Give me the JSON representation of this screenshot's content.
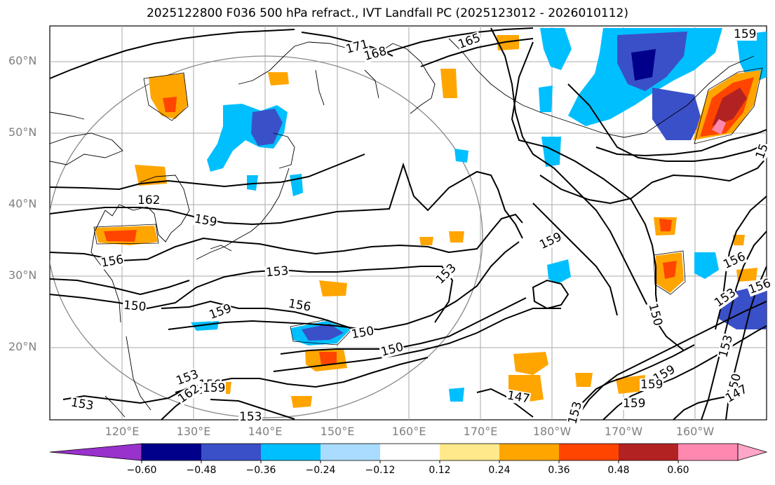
{
  "title": "2025122800 F036 500 hPa refract., IVT Landfall PC (2025123012 - 2026010112)",
  "lat_labels": [
    "60°N",
    "50°N",
    "40°N",
    "30°N",
    "20°N"
  ],
  "lon_labels": [
    "120°E",
    "130°E",
    "140°E",
    "150°E",
    "160°E",
    "170°E",
    "180°W",
    "170°W",
    "160°W"
  ],
  "contour_labels": [
    "171",
    "168",
    "165",
    "159",
    "162",
    "159",
    "156",
    "153",
    "156",
    "150",
    "159",
    "150",
    "150",
    "153",
    "159",
    "150",
    "156",
    "153",
    "147",
    "159",
    "159",
    "153",
    "150",
    "159",
    "147",
    "153",
    "156",
    "15",
    "153",
    "153",
    "159",
    "162",
    "153",
    "156"
  ],
  "colorbar": {
    "ticks": [
      "−0.60",
      "−0.48",
      "−0.36",
      "−0.24",
      "−0.12",
      "0.12",
      "0.24",
      "0.36",
      "0.48",
      "0.60"
    ],
    "colors": [
      "#9932cc",
      "#00008b",
      "#3a50c8",
      "#00bfff",
      "#aadcff",
      "#ffffff",
      "#ffe98a",
      "#ffa500",
      "#ff4500",
      "#b22222",
      "#ff88b0",
      "#ffa6c8"
    ]
  }
}
